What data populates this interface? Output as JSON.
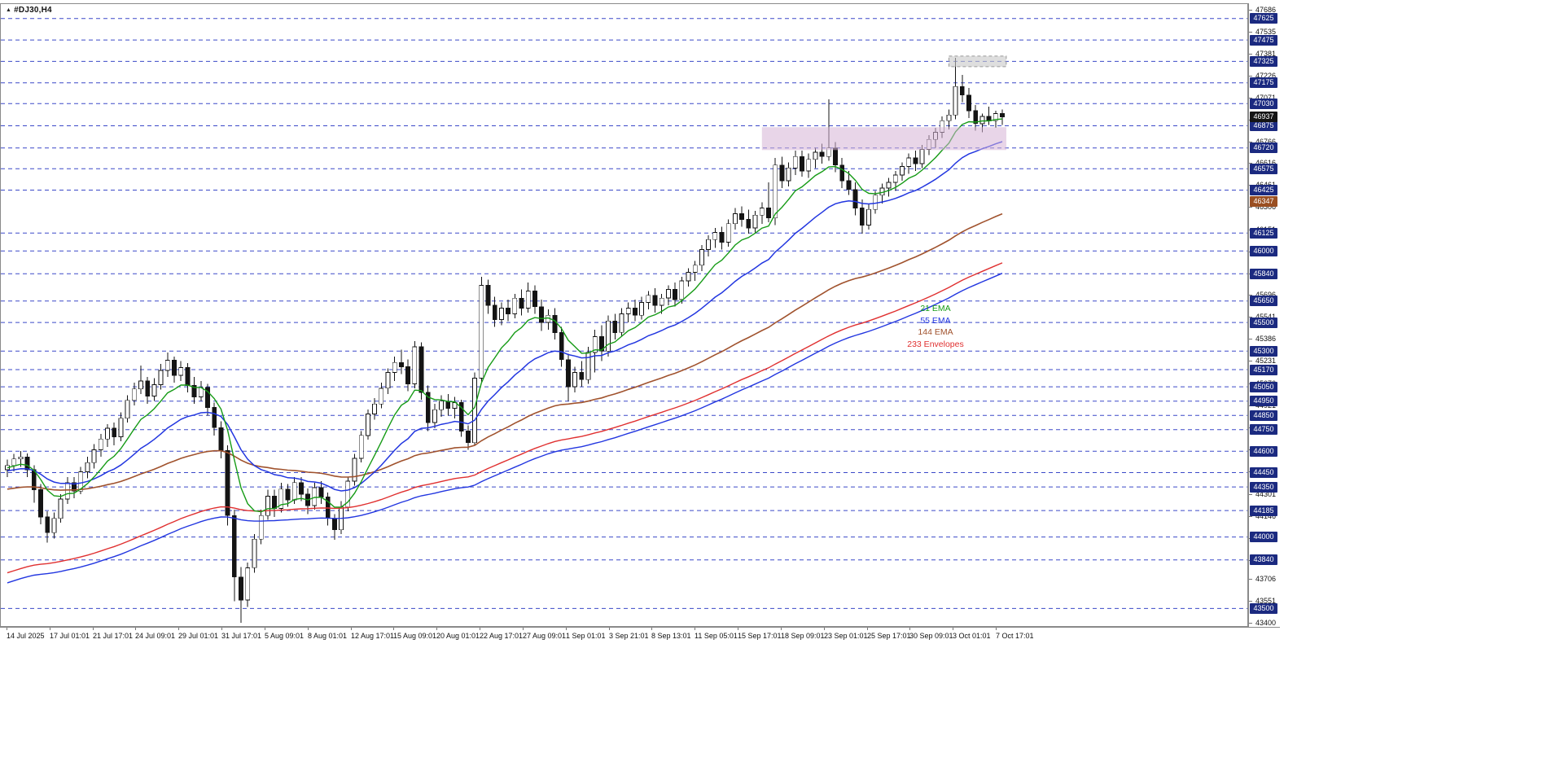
{
  "window": {
    "symbol_label": "#DJ30,H4",
    "symbol_icon_glyph": "▲"
  },
  "colors": {
    "background": "#ffffff",
    "candle_up_fill": "#ffffff",
    "candle_down_fill": "#141414",
    "candle_outline": "#141414",
    "level_line": "#3b49c8",
    "badge_navy": "#1b2a80",
    "badge_current": "#141414",
    "badge_ema144": "#9a4f22",
    "axis_text": "#111111",
    "zone_pink": "rgba(214,178,214,0.55)",
    "zone_gray": "rgba(200,200,200,0.6)"
  },
  "chart_data": {
    "type": "candlestick",
    "symbol": "#DJ30",
    "timeframe": "H4",
    "title": "#DJ30,H4",
    "current_price": 46937,
    "grid": "horizontal-dashed-level-lines",
    "legend_position": "floating-mid-right",
    "y_axis": {
      "min": 43400,
      "max": 47686,
      "tick_values": [
        47686,
        47535,
        47381,
        47226,
        47071,
        46916,
        46766,
        46616,
        46461,
        46306,
        46151,
        45996,
        45841,
        45696,
        45541,
        45386,
        45231,
        45076,
        44921,
        44766,
        44611,
        44456,
        44301,
        44146,
        43991,
        43836,
        43706,
        43551,
        43400
      ]
    },
    "x_labels": [
      "14 Jul 2025",
      "17 Jul 01:01",
      "21 Jul 17:01",
      "24 Jul 09:01",
      "29 Jul 01:01",
      "31 Jul 17:01",
      "5 Aug 09:01",
      "8 Aug 01:01",
      "12 Aug 17:01",
      "15 Aug 09:01",
      "20 Aug 01:01",
      "22 Aug 17:01",
      "27 Aug 09:01",
      "1 Sep 01:01",
      "3 Sep 21:01",
      "8 Sep 13:01",
      "11 Sep 05:01",
      "15 Sep 17:01",
      "18 Sep 09:01",
      "23 Sep 01:01",
      "25 Sep 17:01",
      "30 Sep 09:01",
      "3 Oct 01:01",
      "7 Oct 17:01"
    ],
    "price_level_lines": [
      47625,
      47475,
      47325,
      47175,
      47030,
      46875,
      46720,
      46575,
      46425,
      46125,
      46000,
      45840,
      45650,
      45500,
      45300,
      45170,
      45050,
      44950,
      44850,
      44750,
      44600,
      44450,
      44350,
      44185,
      44000,
      43840,
      43500
    ],
    "special_badges": [
      {
        "value": 46937,
        "role": "current-price",
        "color_key": "badge_current"
      },
      {
        "value": 46347,
        "role": "ema144-value",
        "color_key": "badge_ema144"
      }
    ],
    "indicators": [
      {
        "name": "21 EMA",
        "period": 21,
        "color": "#169b16"
      },
      {
        "name": "55 EMA",
        "period": 55,
        "color": "#2236e0"
      },
      {
        "name": "144 EMA",
        "period": 144,
        "color": "#a0522d"
      },
      {
        "name": "233 Envelopes",
        "period": 233,
        "color": "#e03030",
        "lower_band_color": "#2236e0",
        "deviation_pct": 0.08
      }
    ],
    "zones": [
      {
        "name": "consolidation-zone",
        "price_top": 46865,
        "price_bottom": 46705,
        "start_index": 113,
        "end_index": 149.6,
        "fill_key": "zone_pink",
        "border": ""
      },
      {
        "name": "resistance-box",
        "price_top": 47362,
        "price_bottom": 47288,
        "start_index": 141,
        "end_index": 149.6,
        "fill_key": "zone_gray",
        "border": "#9a9a9a"
      }
    ],
    "candles": [
      [
        44470,
        44540,
        44420,
        44500
      ],
      [
        44500,
        44580,
        44460,
        44545
      ],
      [
        44545,
        44600,
        44490,
        44560
      ],
      [
        44560,
        44585,
        44420,
        44470
      ],
      [
        44470,
        44500,
        44240,
        44330
      ],
      [
        44330,
        44370,
        44090,
        44140
      ],
      [
        44140,
        44180,
        43960,
        44030
      ],
      [
        44030,
        44170,
        43990,
        44130
      ],
      [
        44130,
        44300,
        44100,
        44265
      ],
      [
        44265,
        44420,
        44230,
        44380
      ],
      [
        44380,
        44420,
        44270,
        44320
      ],
      [
        44320,
        44490,
        44300,
        44455
      ],
      [
        44455,
        44560,
        44410,
        44520
      ],
      [
        44520,
        44650,
        44480,
        44610
      ],
      [
        44610,
        44720,
        44560,
        44685
      ],
      [
        44685,
        44790,
        44630,
        44760
      ],
      [
        44760,
        44800,
        44640,
        44700
      ],
      [
        44700,
        44870,
        44670,
        44830
      ],
      [
        44830,
        44990,
        44800,
        44955
      ],
      [
        44955,
        45080,
        44920,
        45035
      ],
      [
        45035,
        45200,
        45000,
        45090
      ],
      [
        45090,
        45120,
        44930,
        44985
      ],
      [
        44985,
        45110,
        44950,
        45065
      ],
      [
        45065,
        45210,
        45030,
        45165
      ],
      [
        45165,
        45290,
        45120,
        45235
      ],
      [
        45235,
        45260,
        45080,
        45130
      ],
      [
        45130,
        45230,
        45090,
        45185
      ],
      [
        45185,
        45215,
        45010,
        45060
      ],
      [
        45060,
        45120,
        44930,
        44980
      ],
      [
        44980,
        45090,
        44950,
        45045
      ],
      [
        45045,
        45070,
        44850,
        44905
      ],
      [
        44905,
        44940,
        44710,
        44765
      ],
      [
        44765,
        44810,
        44550,
        44605
      ],
      [
        44605,
        44640,
        44080,
        44150
      ],
      [
        44150,
        44190,
        43550,
        43720
      ],
      [
        43720,
        43790,
        43400,
        43560
      ],
      [
        43560,
        43820,
        43510,
        43785
      ],
      [
        43785,
        44020,
        43750,
        43985
      ],
      [
        43985,
        44190,
        43950,
        44150
      ],
      [
        44150,
        44330,
        44120,
        44285
      ],
      [
        44285,
        44330,
        44140,
        44200
      ],
      [
        44200,
        44380,
        44170,
        44335
      ],
      [
        44335,
        44370,
        44210,
        44260
      ],
      [
        44260,
        44420,
        44230,
        44380
      ],
      [
        44380,
        44420,
        44250,
        44300
      ],
      [
        44300,
        44340,
        44160,
        44220
      ],
      [
        44220,
        44380,
        44190,
        44345
      ],
      [
        44345,
        44390,
        44230,
        44280
      ],
      [
        44280,
        44310,
        44080,
        44130
      ],
      [
        44130,
        44160,
        43980,
        44050
      ],
      [
        44050,
        44250,
        44020,
        44210
      ],
      [
        44210,
        44420,
        44180,
        44390
      ],
      [
        44390,
        44580,
        44360,
        44550
      ],
      [
        44550,
        44740,
        44520,
        44710
      ],
      [
        44710,
        44890,
        44680,
        44860
      ],
      [
        44860,
        44970,
        44820,
        44930
      ],
      [
        44930,
        45080,
        44900,
        45040
      ],
      [
        45040,
        45180,
        45000,
        45150
      ],
      [
        45150,
        45260,
        45090,
        45220
      ],
      [
        45220,
        45310,
        45140,
        45190
      ],
      [
        45190,
        45240,
        45020,
        45070
      ],
      [
        45070,
        45370,
        45040,
        45330
      ],
      [
        45330,
        45360,
        44960,
        45010
      ],
      [
        45010,
        45060,
        44740,
        44800
      ],
      [
        44800,
        44930,
        44760,
        44890
      ],
      [
        44890,
        44990,
        44840,
        44950
      ],
      [
        44950,
        45000,
        44850,
        44900
      ],
      [
        44900,
        44980,
        44830,
        44940
      ],
      [
        44940,
        44960,
        44700,
        44740
      ],
      [
        44740,
        44780,
        44610,
        44660
      ],
      [
        44660,
        45150,
        44640,
        45110
      ],
      [
        45110,
        45820,
        45080,
        45760
      ],
      [
        45760,
        45800,
        45560,
        45620
      ],
      [
        45620,
        45680,
        45470,
        45520
      ],
      [
        45520,
        45640,
        45480,
        45600
      ],
      [
        45600,
        45660,
        45510,
        45560
      ],
      [
        45560,
        45700,
        45530,
        45670
      ],
      [
        45670,
        45730,
        45550,
        45600
      ],
      [
        45600,
        45780,
        45570,
        45720
      ],
      [
        45720,
        45760,
        45560,
        45610
      ],
      [
        45610,
        45660,
        45440,
        45500
      ],
      [
        45500,
        45590,
        45450,
        45550
      ],
      [
        45550,
        45600,
        45380,
        45430
      ],
      [
        45430,
        45470,
        45190,
        45240
      ],
      [
        45240,
        45280,
        44950,
        45050
      ],
      [
        45050,
        45190,
        45010,
        45150
      ],
      [
        45150,
        45230,
        45050,
        45100
      ],
      [
        45100,
        45330,
        45070,
        45290
      ],
      [
        45290,
        45450,
        45150,
        45400
      ],
      [
        45400,
        45480,
        45230,
        45300
      ],
      [
        45300,
        45550,
        45260,
        45510
      ],
      [
        45510,
        45560,
        45380,
        45430
      ],
      [
        45430,
        45600,
        45400,
        45560
      ],
      [
        45560,
        45640,
        45500,
        45600
      ],
      [
        45600,
        45660,
        45510,
        45550
      ],
      [
        45550,
        45680,
        45520,
        45640
      ],
      [
        45640,
        45720,
        45590,
        45690
      ],
      [
        45690,
        45740,
        45570,
        45620
      ],
      [
        45620,
        45700,
        45560,
        45670
      ],
      [
        45670,
        45760,
        45620,
        45730
      ],
      [
        45730,
        45780,
        45610,
        45660
      ],
      [
        45660,
        45820,
        45630,
        45790
      ],
      [
        45790,
        45880,
        45750,
        45850
      ],
      [
        45850,
        45930,
        45790,
        45900
      ],
      [
        45900,
        46040,
        45860,
        46010
      ],
      [
        46010,
        46110,
        45960,
        46080
      ],
      [
        46080,
        46160,
        46020,
        46130
      ],
      [
        46130,
        46170,
        46010,
        46060
      ],
      [
        46060,
        46220,
        46030,
        46190
      ],
      [
        46190,
        46300,
        46150,
        46260
      ],
      [
        46260,
        46310,
        46170,
        46220
      ],
      [
        46220,
        46290,
        46120,
        46160
      ],
      [
        46160,
        46280,
        46130,
        46250
      ],
      [
        46250,
        46340,
        46190,
        46300
      ],
      [
        46300,
        46480,
        46200,
        46230
      ],
      [
        46230,
        46650,
        46180,
        46600
      ],
      [
        46600,
        46660,
        46440,
        46490
      ],
      [
        46490,
        46620,
        46450,
        46580
      ],
      [
        46580,
        46700,
        46530,
        46660
      ],
      [
        46660,
        46700,
        46520,
        46560
      ],
      [
        46560,
        46680,
        46510,
        46640
      ],
      [
        46640,
        46720,
        46580,
        46690
      ],
      [
        46690,
        46750,
        46610,
        46660
      ],
      [
        46660,
        47060,
        46630,
        46720
      ],
      [
        46720,
        46760,
        46550,
        46600
      ],
      [
        46600,
        46650,
        46440,
        46490
      ],
      [
        46490,
        46560,
        46390,
        46430
      ],
      [
        46430,
        46480,
        46250,
        46300
      ],
      [
        46300,
        46360,
        46120,
        46180
      ],
      [
        46180,
        46330,
        46150,
        46290
      ],
      [
        46290,
        46420,
        46260,
        46390
      ],
      [
        46390,
        46470,
        46330,
        46440
      ],
      [
        46440,
        46510,
        46380,
        46480
      ],
      [
        46480,
        46560,
        46420,
        46530
      ],
      [
        46530,
        46620,
        46490,
        46590
      ],
      [
        46590,
        46680,
        46540,
        46650
      ],
      [
        46650,
        46700,
        46560,
        46610
      ],
      [
        46610,
        46740,
        46580,
        46710
      ],
      [
        46710,
        46810,
        46670,
        46780
      ],
      [
        46780,
        46860,
        46720,
        46830
      ],
      [
        46830,
        46940,
        46790,
        46910
      ],
      [
        46910,
        46990,
        46850,
        46950
      ],
      [
        46950,
        47350,
        46920,
        47150
      ],
      [
        47150,
        47230,
        47040,
        47090
      ],
      [
        47090,
        47140,
        46930,
        46980
      ],
      [
        46980,
        47020,
        46840,
        46890
      ],
      [
        46890,
        46960,
        46830,
        46940
      ],
      [
        46940,
        47010,
        46880,
        46910
      ],
      [
        46910,
        46980,
        46860,
        46960
      ],
      [
        46960,
        46990,
        46880,
        46937
      ]
    ]
  },
  "render": {
    "ema_periods_scaled": [
      9,
      24,
      70,
      110
    ],
    "ema_seeds": [
      44480,
      44460,
      44330,
      43700
    ]
  }
}
